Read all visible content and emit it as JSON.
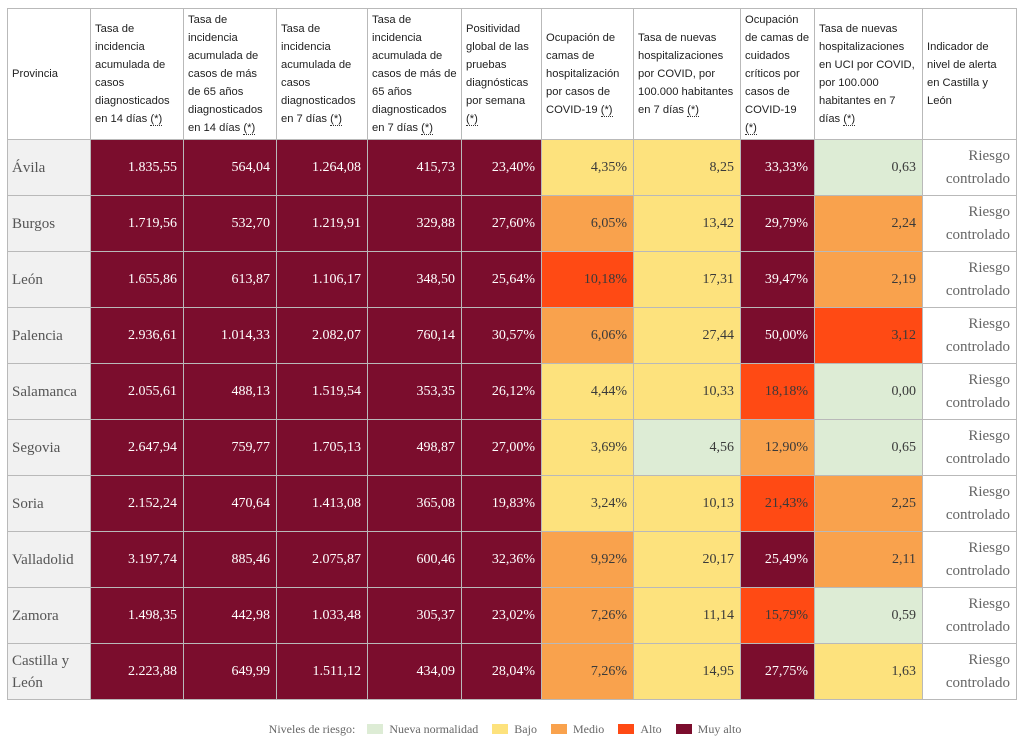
{
  "table": {
    "headers": [
      {
        "text": "Provincia",
        "mark": ""
      },
      {
        "text": "Tasa de incidencia acumulada de casos diagnosticados en 14 días ",
        "mark": "(*)"
      },
      {
        "text": "Tasa de incidencia acumulada de casos de más de 65 años diagnosticados en 14 días ",
        "mark": "(*)"
      },
      {
        "text": "Tasa de incidencia acumulada de casos diagnosticados en 7 días ",
        "mark": "(*)"
      },
      {
        "text": "Tasa de incidencia acumulada de casos de más de 65 años diagnosticados en 7 días ",
        "mark": "(*)"
      },
      {
        "text": "Positividad global de las pruebas diagnósticas por semana ",
        "mark": "(*)"
      },
      {
        "text": "Ocupación de camas de hospitalización por casos de COVID-19 ",
        "mark": "(*)"
      },
      {
        "text": "Tasa de nuevas hospitalizaciones por COVID, por 100.000 habitantes en 7 días ",
        "mark": "(*)"
      },
      {
        "text": "Ocupación de camas de cuidados críticos por casos de COVID-19 ",
        "mark": "(*)"
      },
      {
        "text": "Tasa de nuevas hospitalizaciones en UCI por COVID, por 100.000 habitantes en 7 días ",
        "mark": "(*)"
      },
      {
        "text": "Indicador de nivel de alerta en Castilla y León",
        "mark": ""
      }
    ],
    "rows": [
      {
        "province": "Ávila",
        "values": [
          "1.835,55",
          "564,04",
          "1.264,08",
          "415,73",
          "23,40%",
          "4,35%",
          "8,25",
          "33,33%",
          "0,63"
        ],
        "levels": [
          "muyalto",
          "muyalto",
          "muyalto",
          "muyalto",
          "muyalto",
          "bajo",
          "bajo",
          "muyalto",
          "nueva"
        ],
        "alert": "Riesgo controlado"
      },
      {
        "province": "Burgos",
        "values": [
          "1.719,56",
          "532,70",
          "1.219,91",
          "329,88",
          "27,60%",
          "6,05%",
          "13,42",
          "29,79%",
          "2,24"
        ],
        "levels": [
          "muyalto",
          "muyalto",
          "muyalto",
          "muyalto",
          "muyalto",
          "medio",
          "bajo",
          "muyalto",
          "medio"
        ],
        "alert": "Riesgo controlado"
      },
      {
        "province": "León",
        "values": [
          "1.655,86",
          "613,87",
          "1.106,17",
          "348,50",
          "25,64%",
          "10,18%",
          "17,31",
          "39,47%",
          "2,19"
        ],
        "levels": [
          "muyalto",
          "muyalto",
          "muyalto",
          "muyalto",
          "muyalto",
          "alto",
          "bajo",
          "muyalto",
          "medio"
        ],
        "alert": "Riesgo controlado"
      },
      {
        "province": "Palencia",
        "values": [
          "2.936,61",
          "1.014,33",
          "2.082,07",
          "760,14",
          "30,57%",
          "6,06%",
          "27,44",
          "50,00%",
          "3,12"
        ],
        "levels": [
          "muyalto",
          "muyalto",
          "muyalto",
          "muyalto",
          "muyalto",
          "medio",
          "bajo",
          "muyalto",
          "alto"
        ],
        "alert": "Riesgo controlado"
      },
      {
        "province": "Salamanca",
        "values": [
          "2.055,61",
          "488,13",
          "1.519,54",
          "353,35",
          "26,12%",
          "4,44%",
          "10,33",
          "18,18%",
          "0,00"
        ],
        "levels": [
          "muyalto",
          "muyalto",
          "muyalto",
          "muyalto",
          "muyalto",
          "bajo",
          "bajo",
          "alto",
          "nueva"
        ],
        "alert": "Riesgo controlado"
      },
      {
        "province": "Segovia",
        "values": [
          "2.647,94",
          "759,77",
          "1.705,13",
          "498,87",
          "27,00%",
          "3,69%",
          "4,56",
          "12,90%",
          "0,65"
        ],
        "levels": [
          "muyalto",
          "muyalto",
          "muyalto",
          "muyalto",
          "muyalto",
          "bajo",
          "nueva",
          "medio",
          "nueva"
        ],
        "alert": "Riesgo controlado"
      },
      {
        "province": "Soria",
        "values": [
          "2.152,24",
          "470,64",
          "1.413,08",
          "365,08",
          "19,83%",
          "3,24%",
          "10,13",
          "21,43%",
          "2,25"
        ],
        "levels": [
          "muyalto",
          "muyalto",
          "muyalto",
          "muyalto",
          "muyalto",
          "bajo",
          "bajo",
          "alto",
          "medio"
        ],
        "alert": "Riesgo controlado"
      },
      {
        "province": "Valladolid",
        "values": [
          "3.197,74",
          "885,46",
          "2.075,87",
          "600,46",
          "32,36%",
          "9,92%",
          "20,17",
          "25,49%",
          "2,11"
        ],
        "levels": [
          "muyalto",
          "muyalto",
          "muyalto",
          "muyalto",
          "muyalto",
          "medio",
          "bajo",
          "muyalto",
          "medio"
        ],
        "alert": "Riesgo controlado"
      },
      {
        "province": "Zamora",
        "values": [
          "1.498,35",
          "442,98",
          "1.033,48",
          "305,37",
          "23,02%",
          "7,26%",
          "11,14",
          "15,79%",
          "0,59"
        ],
        "levels": [
          "muyalto",
          "muyalto",
          "muyalto",
          "muyalto",
          "muyalto",
          "medio",
          "bajo",
          "alto",
          "nueva"
        ],
        "alert": "Riesgo controlado"
      },
      {
        "province": "Castilla y León",
        "values": [
          "2.223,88",
          "649,99",
          "1.511,12",
          "434,09",
          "28,04%",
          "7,26%",
          "14,95",
          "27,75%",
          "1,63"
        ],
        "levels": [
          "muyalto",
          "muyalto",
          "muyalto",
          "muyalto",
          "muyalto",
          "medio",
          "bajo",
          "muyalto",
          "bajo"
        ],
        "alert": "Riesgo controlado"
      }
    ]
  },
  "legend": {
    "title": "Niveles de riesgo:",
    "items": [
      {
        "label": "Nueva normalidad",
        "color": "#ddecd5"
      },
      {
        "label": "Bajo",
        "color": "#fde27d"
      },
      {
        "label": "Medio",
        "color": "#f9a24d"
      },
      {
        "label": "Alto",
        "color": "#ff4a14"
      },
      {
        "label": "Muy alto",
        "color": "#7b0d2d"
      }
    ]
  }
}
